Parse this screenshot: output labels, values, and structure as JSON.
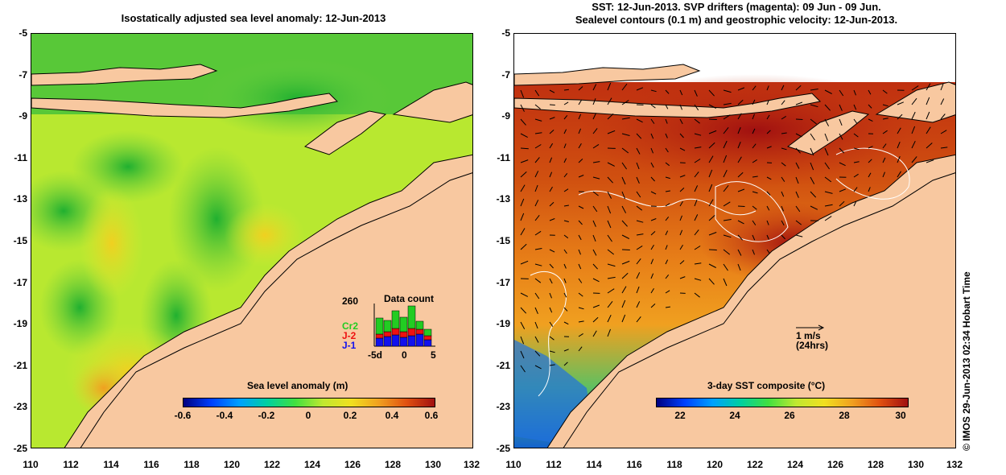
{
  "left_panel": {
    "title": "Isostatically adjusted sea level anomaly: 12-Jun-2013",
    "y_ticks": [
      "-5",
      "-7",
      "-9",
      "-11",
      "-13",
      "-15",
      "-17",
      "-19",
      "-21",
      "-23",
      "-25"
    ],
    "x_ticks": [
      "110",
      "112",
      "114",
      "116",
      "118",
      "120",
      "122",
      "124",
      "126",
      "128",
      "130",
      "132"
    ],
    "colorbar": {
      "title": "Sea level anomaly (m)",
      "ticks": [
        "-0.6",
        "-0.4",
        "-0.2",
        "0",
        "0.2",
        "0.4",
        "0.6"
      ]
    },
    "data_count": {
      "title": "Data count",
      "max_label": "260",
      "series_labels": [
        "Cr2",
        "J-2",
        "J-1"
      ],
      "series_colors": [
        "#22cc22",
        "#ee1111",
        "#1111ee"
      ],
      "x_labels": [
        "-5d",
        "0",
        "5"
      ]
    }
  },
  "right_panel": {
    "title_line1": "SST: 12-Jun-2013. SVP drifters (magenta): 09 Jun - 09 Jun.",
    "title_line2": "Sealevel contours (0.1 m) and geostrophic velocity: 12-Jun-2013.",
    "y_ticks": [
      "-5",
      "-7",
      "-9",
      "-11",
      "-13",
      "-15",
      "-17",
      "-19",
      "-21",
      "-23",
      "-25"
    ],
    "x_ticks": [
      "110",
      "112",
      "114",
      "116",
      "118",
      "120",
      "122",
      "124",
      "126",
      "128",
      "130",
      "132"
    ],
    "velocity_scale": {
      "label": "1 m/s",
      "sublabel": "(24hrs)"
    },
    "colorbar": {
      "title": "3-day SST composite (°C)",
      "ticks": [
        "22",
        "24",
        "26",
        "28",
        "30"
      ]
    }
  },
  "credit": "© IMOS 29-Jun-2013 02:34 Hobart Time",
  "colors": {
    "land": "#f8c8a0",
    "sla_base": "#b8e830",
    "sst_base": "#d86818"
  }
}
